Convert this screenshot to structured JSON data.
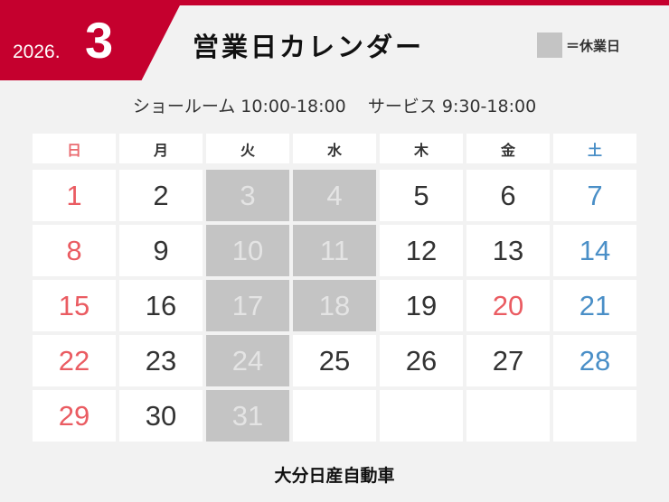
{
  "header": {
    "year": "2026.",
    "month": "3",
    "title": "営業日カレンダー",
    "legend_label": "＝休業日"
  },
  "colors": {
    "brand": "#c5002e",
    "sunday": "#ea5c62",
    "saturday": "#4a8fc7",
    "closed": "#c4c4c4"
  },
  "hours": {
    "showroom": "ショールーム 10:00-18:00",
    "service": "サービス 9:30-18:00"
  },
  "weekdays": [
    {
      "label": "日",
      "type": "sun"
    },
    {
      "label": "月",
      "type": ""
    },
    {
      "label": "火",
      "type": ""
    },
    {
      "label": "水",
      "type": ""
    },
    {
      "label": "木",
      "type": ""
    },
    {
      "label": "金",
      "type": ""
    },
    {
      "label": "土",
      "type": "sat"
    }
  ],
  "days": [
    {
      "d": "1",
      "t": "sun"
    },
    {
      "d": "2",
      "t": "normal"
    },
    {
      "d": "3",
      "t": "closed"
    },
    {
      "d": "4",
      "t": "closed"
    },
    {
      "d": "5",
      "t": "normal"
    },
    {
      "d": "6",
      "t": "normal"
    },
    {
      "d": "7",
      "t": "sat"
    },
    {
      "d": "8",
      "t": "sun"
    },
    {
      "d": "9",
      "t": "normal"
    },
    {
      "d": "10",
      "t": "closed"
    },
    {
      "d": "11",
      "t": "closed"
    },
    {
      "d": "12",
      "t": "normal"
    },
    {
      "d": "13",
      "t": "normal"
    },
    {
      "d": "14",
      "t": "sat"
    },
    {
      "d": "15",
      "t": "sun"
    },
    {
      "d": "16",
      "t": "normal"
    },
    {
      "d": "17",
      "t": "closed"
    },
    {
      "d": "18",
      "t": "closed"
    },
    {
      "d": "19",
      "t": "normal"
    },
    {
      "d": "20",
      "t": "holiday"
    },
    {
      "d": "21",
      "t": "sat"
    },
    {
      "d": "22",
      "t": "sun"
    },
    {
      "d": "23",
      "t": "normal"
    },
    {
      "d": "24",
      "t": "closed"
    },
    {
      "d": "25",
      "t": "normal"
    },
    {
      "d": "26",
      "t": "normal"
    },
    {
      "d": "27",
      "t": "normal"
    },
    {
      "d": "28",
      "t": "sat"
    },
    {
      "d": "29",
      "t": "sun"
    },
    {
      "d": "30",
      "t": "normal"
    },
    {
      "d": "31",
      "t": "closed"
    },
    {
      "d": "",
      "t": "empty"
    },
    {
      "d": "",
      "t": "empty"
    },
    {
      "d": "",
      "t": "empty"
    },
    {
      "d": "",
      "t": "empty"
    }
  ],
  "footer": {
    "company": "大分日産自動車"
  }
}
